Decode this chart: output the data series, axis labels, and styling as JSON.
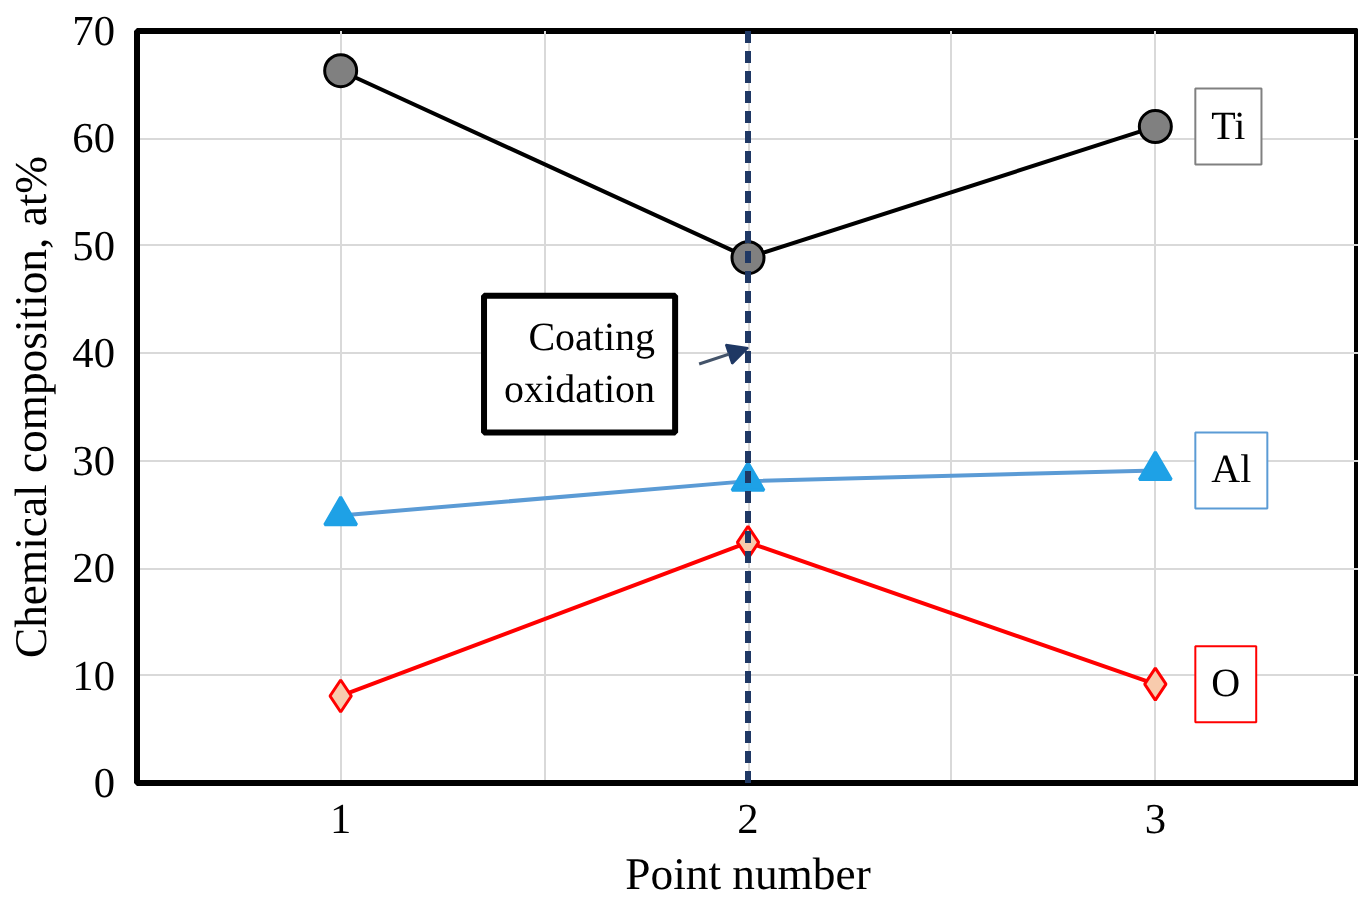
{
  "chart_data": {
    "type": "line",
    "xlabel": "Point number",
    "ylabel": "Chemical composition, at%",
    "x": [
      1,
      2,
      3
    ],
    "series": [
      {
        "name": "Ti",
        "color": "#000000",
        "colors": [
          "#808080",
          "#808080",
          "#808080"
        ],
        "marker": "circle",
        "values": [
          66.3,
          48.9,
          61.1
        ]
      },
      {
        "name": "Al",
        "color": "#5b9bd5",
        "colors": [
          "#1ea1e6",
          "#1ea1e6",
          "#1ea1e6"
        ],
        "marker": "triangle",
        "values": [
          24.9,
          28.1,
          29.1
        ]
      },
      {
        "name": "O",
        "color": "#ff0000",
        "colors": [
          "#f8cbad",
          "#f8cbad",
          "#f8cbad"
        ],
        "marker": "diamond",
        "values": [
          8.1,
          22.4,
          9.2
        ]
      }
    ],
    "xlim": [
      0.5,
      3.5
    ],
    "ylim": [
      0,
      70
    ],
    "xticks": [
      1,
      {
        "value": 1.5,
        "label": null
      },
      2,
      {
        "value": 2.5,
        "label": null
      },
      3
    ],
    "yticks": [
      0,
      10,
      20,
      30,
      40,
      50,
      60,
      70
    ],
    "grid": true,
    "line_style": "solid",
    "ref_lines": [
      {
        "axis": "x",
        "value": 2,
        "label": null,
        "color": "#1f3864",
        "line_style": "dashed"
      }
    ],
    "annotations": [
      {
        "text": "Coating\noxidation",
        "x": 2,
        "y": 40.5
      }
    ]
  }
}
